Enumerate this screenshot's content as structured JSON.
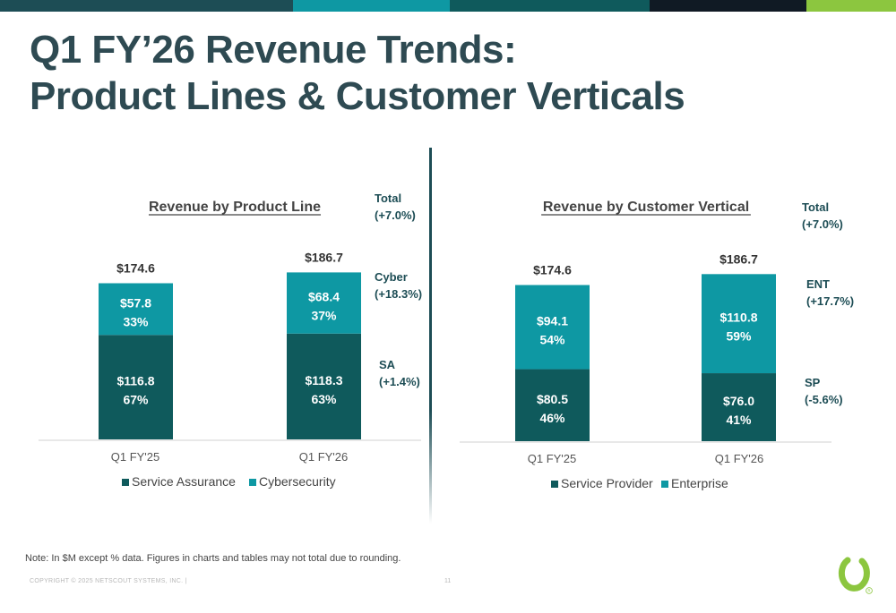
{
  "slide": {
    "title_line1": "Q1 FY’26 Revenue Trends:",
    "title_line2": "Product Lines & Customer Verticals",
    "note": "Note: In $M except % data. Figures in charts and tables may not total due to rounding.",
    "copyright": "COPYRIGHT © 2025 NETSCOUT SYSTEMS, INC. |",
    "page_number": "11"
  },
  "colors": {
    "dark_teal": "#0f5a5c",
    "teal": "#0e98a3",
    "title": "#2e4a52",
    "annotation": "#1d4d55",
    "lime": "#8cc63f",
    "topbar": [
      "#1d4d55",
      "#0e98a3",
      "#0f5a5c",
      "#101a24",
      "#8cc63f"
    ]
  },
  "icons": {
    "logo": "netscout-logo-icon"
  },
  "chart_data": [
    {
      "type": "bar",
      "stacked": true,
      "title": "Revenue by Product Line",
      "categories": [
        "Q1 FY'25",
        "Q1 FY'26"
      ],
      "totals": [
        "$174.6",
        "$186.7"
      ],
      "series": [
        {
          "name": "Service Assurance",
          "values": [
            116.8,
            118.3
          ],
          "value_labels": [
            "$116.8",
            "$118.3"
          ],
          "pct_labels": [
            "67%",
            "63%"
          ],
          "color": "#0f5a5c"
        },
        {
          "name": "Cybersecurity",
          "values": [
            57.8,
            68.4
          ],
          "value_labels": [
            "$57.8",
            "$68.4"
          ],
          "pct_labels": [
            "33%",
            "37%"
          ],
          "color": "#0e98a3"
        }
      ],
      "annotations": [
        {
          "label": "Total",
          "change": "(+7.0%)"
        },
        {
          "label": "Cyber",
          "change": "(+18.3%)"
        },
        {
          "label": "SA",
          "change": "(+1.4%)"
        }
      ],
      "ylim": [
        0,
        210
      ],
      "legend": "bottom"
    },
    {
      "type": "bar",
      "stacked": true,
      "title": "Revenue by Customer Vertical",
      "categories": [
        "Q1 FY'25",
        "Q1 FY'26"
      ],
      "totals": [
        "$174.6",
        "$186.7"
      ],
      "series": [
        {
          "name": "Service Provider",
          "values": [
            80.5,
            76.0
          ],
          "value_labels": [
            "$80.5",
            "$76.0"
          ],
          "pct_labels": [
            "46%",
            "41%"
          ],
          "color": "#0f5a5c"
        },
        {
          "name": "Enterprise",
          "values": [
            94.1,
            110.8
          ],
          "value_labels": [
            "$94.1",
            "$110.8"
          ],
          "pct_labels": [
            "54%",
            "59%"
          ],
          "color": "#0e98a3"
        }
      ],
      "annotations": [
        {
          "label": "Total",
          "change": "(+7.0%)"
        },
        {
          "label": "ENT",
          "change": "(+17.7%)"
        },
        {
          "label": "SP",
          "change": "(-5.6%)"
        }
      ],
      "ylim": [
        0,
        210
      ],
      "legend": "bottom"
    }
  ]
}
